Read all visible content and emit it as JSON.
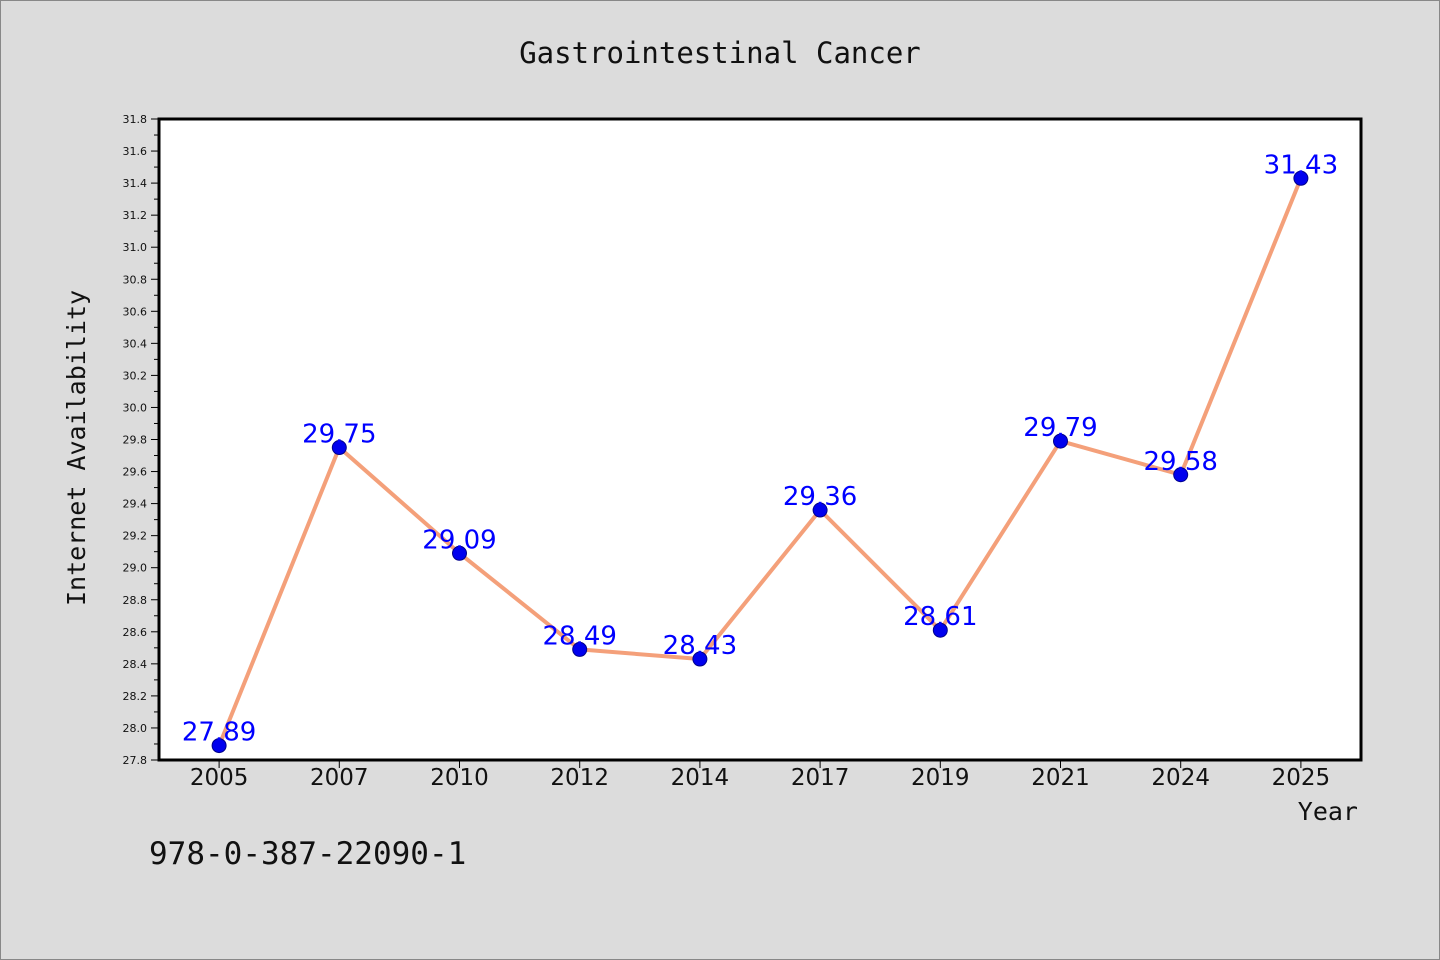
{
  "chart_data": {
    "type": "line",
    "title": "Gastrointestinal Cancer",
    "xlabel": "Year",
    "ylabel": "Internet Availability",
    "categories": [
      "2005",
      "2007",
      "2010",
      "2012",
      "2014",
      "2017",
      "2019",
      "2021",
      "2024",
      "2025"
    ],
    "series": [
      {
        "values": [
          27.89,
          29.75,
          29.09,
          28.49,
          28.43,
          29.36,
          28.61,
          29.79,
          29.58,
          31.43
        ],
        "labels": [
          "27.89",
          "29.75",
          "29.09",
          "28.49",
          "28.43",
          "29.36",
          "28.61",
          "29.79",
          "29.58",
          "31.43"
        ]
      }
    ],
    "ylim": [
      27.8,
      31.8
    ],
    "yticks": [
      "27.8",
      "28.0",
      "28.2",
      "28.4",
      "28.6",
      "28.8",
      "29.0",
      "29.2",
      "29.4",
      "29.6",
      "29.8",
      "30.0",
      "30.2",
      "30.4",
      "30.6",
      "30.8",
      "31.0",
      "31.2",
      "31.4",
      "31.6",
      "31.8"
    ],
    "grid": false,
    "legend": "none",
    "colors": {
      "line": "#f4a07a",
      "marker": "#0000ee",
      "label": "#0000ff",
      "plot_background": "#ffffff",
      "figure_background": "#dcdcdc"
    }
  },
  "footer": {
    "code": "978-0-387-22090-1"
  }
}
